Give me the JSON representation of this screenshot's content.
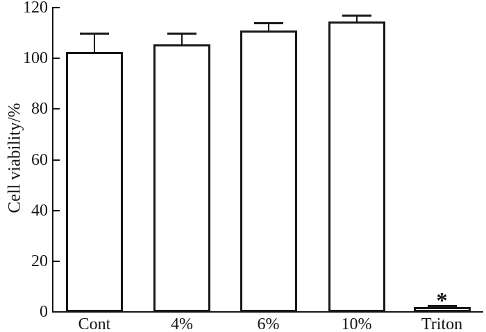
{
  "chart_data": {
    "type": "bar",
    "title": "",
    "categories": [
      "Cont",
      "4%",
      "6%",
      "10%",
      "Triton"
    ],
    "values": [
      102.5,
      105.5,
      111,
      114.5,
      2
    ],
    "errors": [
      7.5,
      4.5,
      3,
      2.5,
      0.5
    ],
    "xlabel": "",
    "ylabel": "Cell viability/%",
    "ylim": [
      0,
      120
    ],
    "yticks": [
      0,
      20,
      40,
      60,
      80,
      100,
      120
    ],
    "grid": "off",
    "legend": "none",
    "bar_fill": "#ffffff",
    "bar_border": "#161616",
    "axis_color": "#161616",
    "background_color": "#ffffff",
    "annotations": [
      {
        "category": "Triton",
        "text": "*",
        "meaning": "significance-marker"
      }
    ]
  }
}
